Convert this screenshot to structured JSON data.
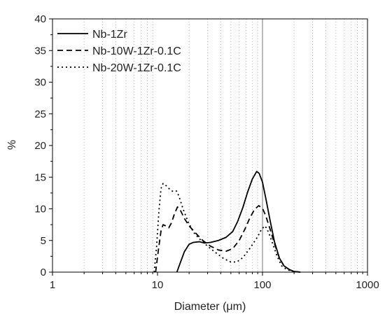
{
  "chart_data": {
    "type": "line",
    "xscale": "log",
    "xlim": [
      1,
      1000
    ],
    "ylim": [
      0,
      40
    ],
    "xlabel": "Diameter (μm)",
    "ylabel": "%",
    "xticks": [
      "1",
      "10",
      "100",
      "1000"
    ],
    "yticks": [
      "0",
      "5",
      "10",
      "15",
      "20",
      "25",
      "30",
      "35",
      "40"
    ],
    "grid": "vertical dotted minor lines",
    "reference_line_x": 100,
    "legend_position": "top-left",
    "series": [
      {
        "name": "Nb-1Zr",
        "dash": "solid",
        "points": [
          [
            15.3,
            0
          ],
          [
            16.5,
            1.5
          ],
          [
            18,
            3.2
          ],
          [
            20,
            4.4
          ],
          [
            22,
            4.7
          ],
          [
            25,
            4.8
          ],
          [
            28,
            4.6
          ],
          [
            32,
            4.7
          ],
          [
            38,
            5.0
          ],
          [
            45,
            5.5
          ],
          [
            52,
            6.4
          ],
          [
            58,
            8.0
          ],
          [
            65,
            10.2
          ],
          [
            72,
            12.6
          ],
          [
            80,
            14.7
          ],
          [
            88,
            15.9
          ],
          [
            93,
            15.6
          ],
          [
            100,
            14.2
          ],
          [
            108,
            11.5
          ],
          [
            118,
            8.2
          ],
          [
            130,
            4.8
          ],
          [
            145,
            2.2
          ],
          [
            160,
            1.0
          ],
          [
            180,
            0.4
          ],
          [
            200,
            0.1
          ],
          [
            230,
            0
          ]
        ]
      },
      {
        "name": "Nb-10W-1Zr-0.1C",
        "dash": "dashed",
        "points": [
          [
            9.6,
            0
          ],
          [
            10.2,
            3.5
          ],
          [
            10.8,
            6.5
          ],
          [
            11.3,
            7.5
          ],
          [
            12,
            7.3
          ],
          [
            12.8,
            7.0
          ],
          [
            13.6,
            7.8
          ],
          [
            14.5,
            9.2
          ],
          [
            15.5,
            10.3
          ],
          [
            16.5,
            9.8
          ],
          [
            18,
            8.5
          ],
          [
            20,
            7.3
          ],
          [
            23,
            6.2
          ],
          [
            27,
            5.0
          ],
          [
            32,
            4.1
          ],
          [
            38,
            3.5
          ],
          [
            45,
            3.3
          ],
          [
            52,
            3.7
          ],
          [
            60,
            5.0
          ],
          [
            68,
            6.8
          ],
          [
            76,
            8.6
          ],
          [
            84,
            9.9
          ],
          [
            92,
            10.5
          ],
          [
            100,
            10.1
          ],
          [
            108,
            8.8
          ],
          [
            118,
            6.8
          ],
          [
            130,
            4.5
          ],
          [
            145,
            2.2
          ],
          [
            160,
            1.0
          ],
          [
            180,
            0.4
          ],
          [
            200,
            0.1
          ],
          [
            230,
            0
          ]
        ]
      },
      {
        "name": "Nb-20W-1Zr-0.1C",
        "dash": "dotted",
        "points": [
          [
            9.3,
            0
          ],
          [
            9.8,
            4.0
          ],
          [
            10.3,
            9.5
          ],
          [
            10.8,
            13.2
          ],
          [
            11.3,
            14.0
          ],
          [
            12.2,
            13.6
          ],
          [
            13.2,
            13.0
          ],
          [
            14.2,
            12.7
          ],
          [
            15.2,
            12.8
          ],
          [
            16,
            12.0
          ],
          [
            17.5,
            10.0
          ],
          [
            19.5,
            8.0
          ],
          [
            22,
            6.3
          ],
          [
            26,
            5.0
          ],
          [
            31,
            3.9
          ],
          [
            37,
            2.9
          ],
          [
            43,
            2.1
          ],
          [
            50,
            1.6
          ],
          [
            57,
            1.6
          ],
          [
            65,
            2.3
          ],
          [
            74,
            3.5
          ],
          [
            82,
            4.6
          ],
          [
            90,
            5.6
          ],
          [
            98,
            6.8
          ],
          [
            106,
            7.3
          ],
          [
            115,
            6.2
          ],
          [
            125,
            4.5
          ],
          [
            138,
            2.5
          ],
          [
            152,
            1.0
          ],
          [
            170,
            0.4
          ],
          [
            195,
            0.1
          ],
          [
            230,
            0
          ]
        ]
      }
    ]
  }
}
